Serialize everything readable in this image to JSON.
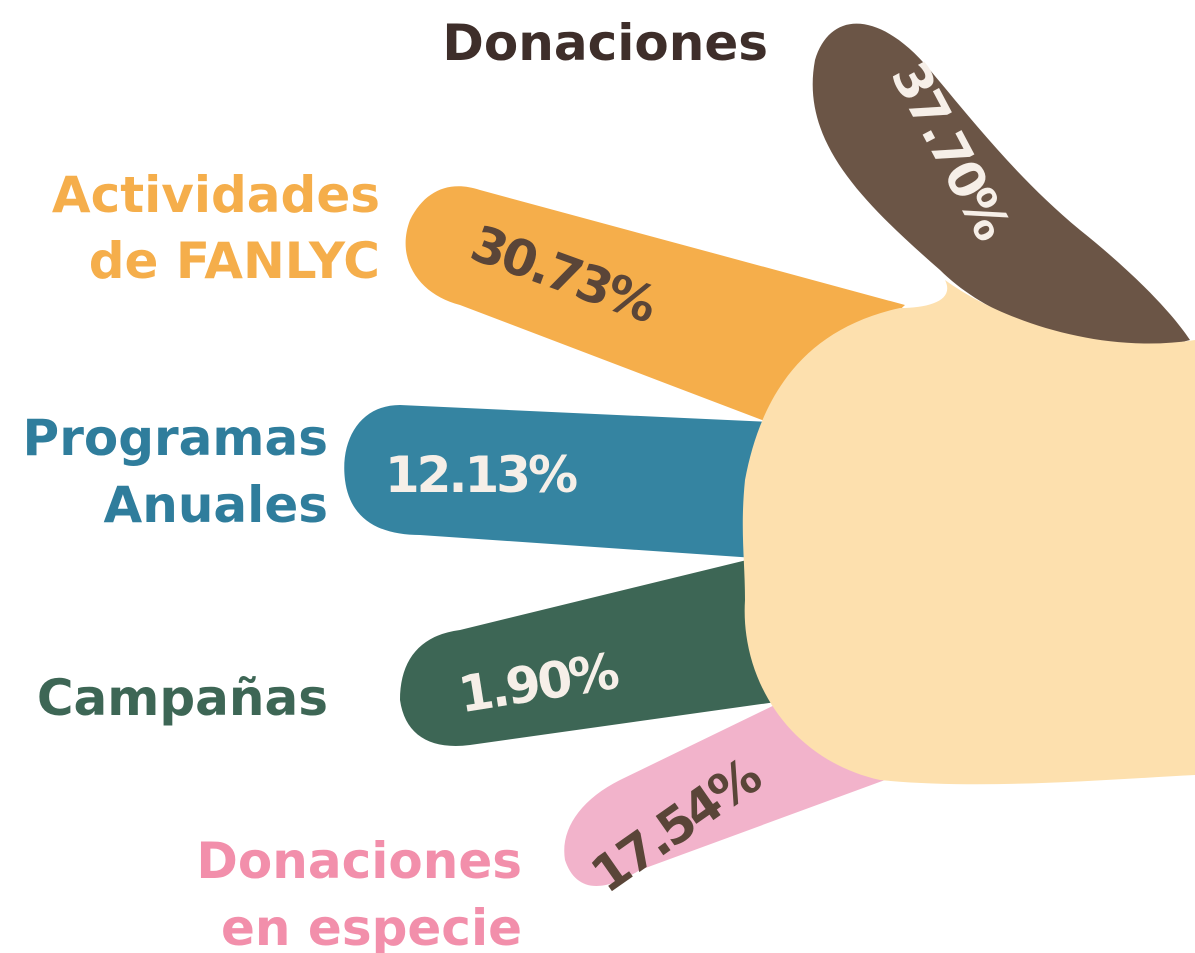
{
  "items": [
    {
      "label": [
        "Donaciones"
      ],
      "value": "37.70%"
    },
    {
      "label": [
        "Actividades",
        "de FANLYC"
      ],
      "value": "30.73%"
    },
    {
      "label": [
        "Programas",
        "Anuales"
      ],
      "value": "12.13%"
    },
    {
      "label": [
        "Campañas"
      ],
      "value": "1.90%"
    },
    {
      "label": [
        "Donaciones",
        "en especie"
      ],
      "value": "17.54%"
    }
  ]
}
